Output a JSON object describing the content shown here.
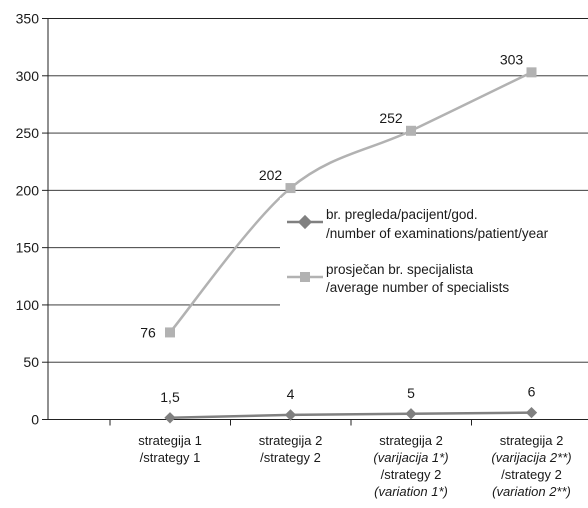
{
  "chart_data": {
    "type": "line",
    "ylim": [
      0,
      350
    ],
    "yticks": [
      0,
      50,
      100,
      150,
      200,
      250,
      300,
      350
    ],
    "grid": true,
    "legend_position": "right",
    "categories": [
      [
        {
          "text": "strategija 1",
          "italic": false
        },
        {
          "text": "/strategy 1",
          "italic": false
        }
      ],
      [
        {
          "text": "strategija 2",
          "italic": false
        },
        {
          "text": "/strategy 2",
          "italic": false
        }
      ],
      [
        {
          "text": "strategija 2",
          "italic": false
        },
        {
          "text": "(varijacija 1*)",
          "italic": true
        },
        {
          "text": "/strategy 2",
          "italic": false
        },
        {
          "text": "(variation 1*)",
          "italic": true
        }
      ],
      [
        {
          "text": "strategija 2",
          "italic": false
        },
        {
          "text": "(varijacija 2**)",
          "italic": true
        },
        {
          "text": "/strategy 2",
          "italic": false
        },
        {
          "text": "(variation 2**)",
          "italic": true
        }
      ]
    ],
    "series": [
      {
        "name": [
          "br. pregleda/pacijent/god.",
          "/number of examinations/patient/year"
        ],
        "marker": "diamond",
        "color": "#808080",
        "values": [
          1.5,
          4,
          5,
          6
        ],
        "labels": [
          "1,5",
          "4",
          "5",
          "6"
        ]
      },
      {
        "name": [
          "prosječan br. specijalista",
          "/average number of specialists"
        ],
        "marker": "square",
        "color": "#b2b2b2",
        "values": [
          76,
          202,
          252,
          303
        ],
        "labels": [
          "76",
          "202",
          "252",
          "303"
        ]
      }
    ]
  }
}
